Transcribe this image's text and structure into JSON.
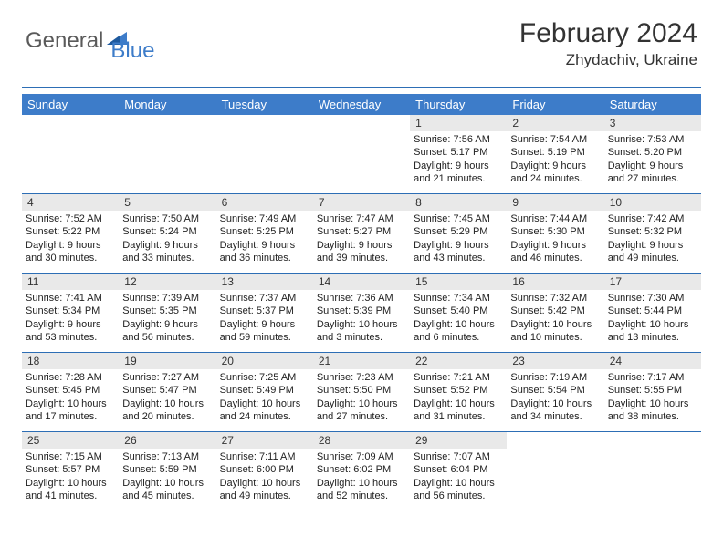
{
  "logo": {
    "general": "General",
    "blue": "Blue",
    "accent_color": "#3d7cc9",
    "text_color": "#5a5a5a"
  },
  "header": {
    "month": "February 2024",
    "location": "Zhydachiv, Ukraine"
  },
  "style": {
    "header_bg": "#3d7cc9",
    "header_text": "#ffffff",
    "daynum_bg": "#e9e9e9",
    "rule_color": "#2d6eb5",
    "body_font_size": 11,
    "header_font_size": 13,
    "title_font_size": 30,
    "location_font_size": 17
  },
  "day_names": [
    "Sunday",
    "Monday",
    "Tuesday",
    "Wednesday",
    "Thursday",
    "Friday",
    "Saturday"
  ],
  "weeks": [
    [
      null,
      null,
      null,
      null,
      {
        "n": "1",
        "sr": "Sunrise: 7:56 AM",
        "ss": "Sunset: 5:17 PM",
        "dl": "Daylight: 9 hours and 21 minutes."
      },
      {
        "n": "2",
        "sr": "Sunrise: 7:54 AM",
        "ss": "Sunset: 5:19 PM",
        "dl": "Daylight: 9 hours and 24 minutes."
      },
      {
        "n": "3",
        "sr": "Sunrise: 7:53 AM",
        "ss": "Sunset: 5:20 PM",
        "dl": "Daylight: 9 hours and 27 minutes."
      }
    ],
    [
      {
        "n": "4",
        "sr": "Sunrise: 7:52 AM",
        "ss": "Sunset: 5:22 PM",
        "dl": "Daylight: 9 hours and 30 minutes."
      },
      {
        "n": "5",
        "sr": "Sunrise: 7:50 AM",
        "ss": "Sunset: 5:24 PM",
        "dl": "Daylight: 9 hours and 33 minutes."
      },
      {
        "n": "6",
        "sr": "Sunrise: 7:49 AM",
        "ss": "Sunset: 5:25 PM",
        "dl": "Daylight: 9 hours and 36 minutes."
      },
      {
        "n": "7",
        "sr": "Sunrise: 7:47 AM",
        "ss": "Sunset: 5:27 PM",
        "dl": "Daylight: 9 hours and 39 minutes."
      },
      {
        "n": "8",
        "sr": "Sunrise: 7:45 AM",
        "ss": "Sunset: 5:29 PM",
        "dl": "Daylight: 9 hours and 43 minutes."
      },
      {
        "n": "9",
        "sr": "Sunrise: 7:44 AM",
        "ss": "Sunset: 5:30 PM",
        "dl": "Daylight: 9 hours and 46 minutes."
      },
      {
        "n": "10",
        "sr": "Sunrise: 7:42 AM",
        "ss": "Sunset: 5:32 PM",
        "dl": "Daylight: 9 hours and 49 minutes."
      }
    ],
    [
      {
        "n": "11",
        "sr": "Sunrise: 7:41 AM",
        "ss": "Sunset: 5:34 PM",
        "dl": "Daylight: 9 hours and 53 minutes."
      },
      {
        "n": "12",
        "sr": "Sunrise: 7:39 AM",
        "ss": "Sunset: 5:35 PM",
        "dl": "Daylight: 9 hours and 56 minutes."
      },
      {
        "n": "13",
        "sr": "Sunrise: 7:37 AM",
        "ss": "Sunset: 5:37 PM",
        "dl": "Daylight: 9 hours and 59 minutes."
      },
      {
        "n": "14",
        "sr": "Sunrise: 7:36 AM",
        "ss": "Sunset: 5:39 PM",
        "dl": "Daylight: 10 hours and 3 minutes."
      },
      {
        "n": "15",
        "sr": "Sunrise: 7:34 AM",
        "ss": "Sunset: 5:40 PM",
        "dl": "Daylight: 10 hours and 6 minutes."
      },
      {
        "n": "16",
        "sr": "Sunrise: 7:32 AM",
        "ss": "Sunset: 5:42 PM",
        "dl": "Daylight: 10 hours and 10 minutes."
      },
      {
        "n": "17",
        "sr": "Sunrise: 7:30 AM",
        "ss": "Sunset: 5:44 PM",
        "dl": "Daylight: 10 hours and 13 minutes."
      }
    ],
    [
      {
        "n": "18",
        "sr": "Sunrise: 7:28 AM",
        "ss": "Sunset: 5:45 PM",
        "dl": "Daylight: 10 hours and 17 minutes."
      },
      {
        "n": "19",
        "sr": "Sunrise: 7:27 AM",
        "ss": "Sunset: 5:47 PM",
        "dl": "Daylight: 10 hours and 20 minutes."
      },
      {
        "n": "20",
        "sr": "Sunrise: 7:25 AM",
        "ss": "Sunset: 5:49 PM",
        "dl": "Daylight: 10 hours and 24 minutes."
      },
      {
        "n": "21",
        "sr": "Sunrise: 7:23 AM",
        "ss": "Sunset: 5:50 PM",
        "dl": "Daylight: 10 hours and 27 minutes."
      },
      {
        "n": "22",
        "sr": "Sunrise: 7:21 AM",
        "ss": "Sunset: 5:52 PM",
        "dl": "Daylight: 10 hours and 31 minutes."
      },
      {
        "n": "23",
        "sr": "Sunrise: 7:19 AM",
        "ss": "Sunset: 5:54 PM",
        "dl": "Daylight: 10 hours and 34 minutes."
      },
      {
        "n": "24",
        "sr": "Sunrise: 7:17 AM",
        "ss": "Sunset: 5:55 PM",
        "dl": "Daylight: 10 hours and 38 minutes."
      }
    ],
    [
      {
        "n": "25",
        "sr": "Sunrise: 7:15 AM",
        "ss": "Sunset: 5:57 PM",
        "dl": "Daylight: 10 hours and 41 minutes."
      },
      {
        "n": "26",
        "sr": "Sunrise: 7:13 AM",
        "ss": "Sunset: 5:59 PM",
        "dl": "Daylight: 10 hours and 45 minutes."
      },
      {
        "n": "27",
        "sr": "Sunrise: 7:11 AM",
        "ss": "Sunset: 6:00 PM",
        "dl": "Daylight: 10 hours and 49 minutes."
      },
      {
        "n": "28",
        "sr": "Sunrise: 7:09 AM",
        "ss": "Sunset: 6:02 PM",
        "dl": "Daylight: 10 hours and 52 minutes."
      },
      {
        "n": "29",
        "sr": "Sunrise: 7:07 AM",
        "ss": "Sunset: 6:04 PM",
        "dl": "Daylight: 10 hours and 56 minutes."
      },
      null,
      null
    ]
  ]
}
